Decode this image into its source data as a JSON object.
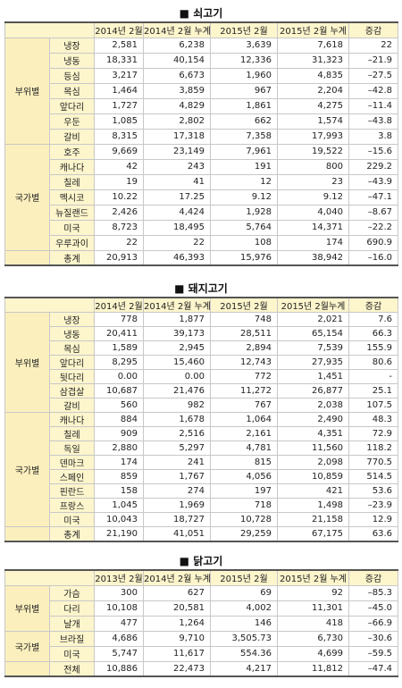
{
  "sections": [
    {
      "title": "■ 쇠고기",
      "headers": [
        "2014년 2월",
        "2014년 2월 누계",
        "2015년 2월",
        "2015년 2월 누계",
        "증감"
      ],
      "groups": [
        {
          "label": "부위별",
          "rows": [
            [
              "냉장",
              "2,581",
              "6,238",
              "3,639",
              "7,618",
              "22"
            ],
            [
              "냉동",
              "18,331",
              "40,154",
              "12,336",
              "31,323",
              "–21.9"
            ],
            [
              "등심",
              "3,217",
              "6,673",
              "1,960",
              "4,835",
              "–27.5"
            ],
            [
              "목심",
              "1,464",
              "3,859",
              "967",
              "2,204",
              "–42.8"
            ],
            [
              "앞다리",
              "1,727",
              "4,829",
              "1,861",
              "4,275",
              "–11.4"
            ],
            [
              "우둔",
              "1,085",
              "2,802",
              "662",
              "1,574",
              "–43.8"
            ],
            [
              "갈비",
              "8,315",
              "17,318",
              "7,358",
              "17,993",
              "3.8"
            ]
          ]
        },
        {
          "label": "국가별",
          "rows": [
            [
              "호주",
              "9,669",
              "23,149",
              "7,961",
              "19,522",
              "–15.6"
            ],
            [
              "캐나다",
              "42",
              "243",
              "191",
              "800",
              "229.2"
            ],
            [
              "칠레",
              "19",
              "41",
              "12",
              "23",
              "–43.9"
            ],
            [
              "멕시코",
              "10.22",
              "17.25",
              "9.12",
              "9.12",
              "–47.1"
            ],
            [
              "뉴질랜드",
              "2,426",
              "4,424",
              "1,928",
              "4,040",
              "–8.67"
            ],
            [
              "미국",
              "8,723",
              "18,495",
              "5,764",
              "14,371",
              "–22.2"
            ],
            [
              "우루과이",
              "22",
              "22",
              "108",
              "174",
              "690.9"
            ]
          ]
        }
      ],
      "total": [
        "총계",
        "20,913",
        "46,393",
        "15,976",
        "38,942",
        "–16.0"
      ]
    },
    {
      "title": "■ 돼지고기",
      "headers": [
        "2014년 2월",
        "2014년 2월 누계",
        "2015년 2월",
        "2015년 2월누계",
        "증감"
      ],
      "groups": [
        {
          "label": "부위별",
          "rows": [
            [
              "냉장",
              "778",
              "1,877",
              "748",
              "2,021",
              "7.6"
            ],
            [
              "냉동",
              "20,411",
              "39,173",
              "28,511",
              "65,154",
              "66.3"
            ],
            [
              "목심",
              "1,589",
              "2,945",
              "2,894",
              "7,539",
              "155.9"
            ],
            [
              "앞다리",
              "8,295",
              "15,460",
              "12,743",
              "27,935",
              "80.6"
            ],
            [
              "뒷다리",
              "0.00",
              "0.00",
              "772",
              "1,451",
              "-"
            ],
            [
              "삼겹살",
              "10,687",
              "21,476",
              "11,272",
              "26,877",
              "25.1"
            ],
            [
              "갈비",
              "560",
              "982",
              "767",
              "2,038",
              "107.5"
            ]
          ]
        },
        {
          "label": "국가별",
          "rows": [
            [
              "캐나다",
              "884",
              "1,678",
              "1,064",
              "2,490",
              "48.3"
            ],
            [
              "칠레",
              "909",
              "2,516",
              "2,161",
              "4,351",
              "72.9"
            ],
            [
              "독일",
              "2,880",
              "5,297",
              "4,781",
              "11,560",
              "118.2"
            ],
            [
              "덴마크",
              "174",
              "241",
              "815",
              "2,098",
              "770.5"
            ],
            [
              "스페인",
              "859",
              "1,767",
              "4,056",
              "10,859",
              "514.5"
            ],
            [
              "핀란드",
              "158",
              "274",
              "197",
              "421",
              "53.6"
            ],
            [
              "프랑스",
              "1,045",
              "1,969",
              "718",
              "1,498",
              "–23.9"
            ],
            [
              "미국",
              "10,043",
              "18,727",
              "10,728",
              "21,158",
              "12.9"
            ]
          ]
        }
      ],
      "total": [
        "총계",
        "21,190",
        "41,051",
        "29,259",
        "67,175",
        "63.6"
      ]
    },
    {
      "title": "■ 닭고기",
      "headers": [
        "2013년 2월",
        "2014년 2월 누계",
        "2015년 2월",
        "2015년 2월 누계",
        "증감"
      ],
      "groups": [
        {
          "label": "부위별",
          "rows": [
            [
              "가슴",
              "300",
              "627",
              "69",
              "92",
              "–85.3"
            ],
            [
              "다리",
              "10,108",
              "20,581",
              "4,002",
              "11,301",
              "–45.0"
            ],
            [
              "날개",
              "477",
              "1,264",
              "146",
              "418",
              "–66.9"
            ]
          ]
        },
        {
          "label": "국가별",
          "rows": [
            [
              "브라질",
              "4,686",
              "9,710",
              "3,505.73",
              "6,730",
              "–30.6"
            ],
            [
              "미국",
              "5,747",
              "11,617",
              "554.36",
              "4,699",
              "–59.5"
            ]
          ]
        }
      ],
      "total": [
        "전체",
        "10,886",
        "22,473",
        "4,217",
        "11,812",
        "–47.4"
      ]
    }
  ]
}
